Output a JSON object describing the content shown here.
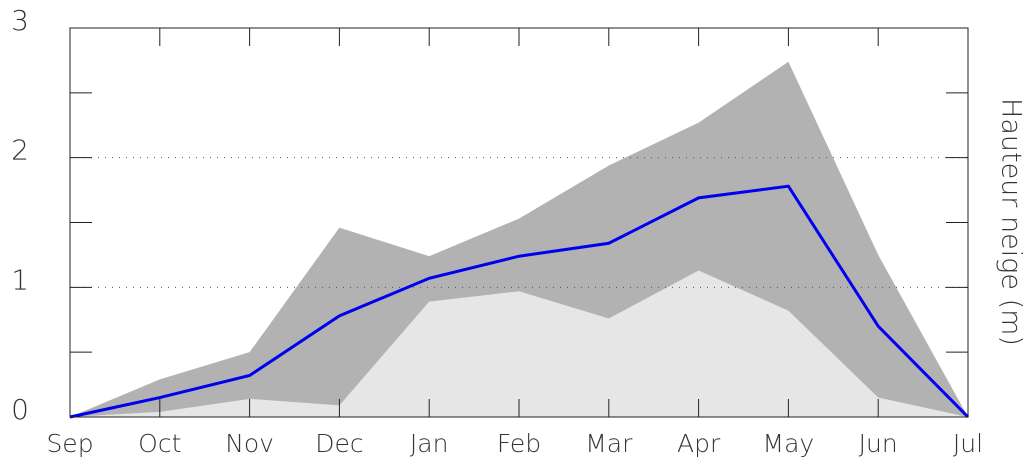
{
  "chart_data": {
    "type": "band-line",
    "y_label": "Hauteur neige (m)",
    "categories": [
      "Sep",
      "Oct",
      "Nov",
      "Dec",
      "Jan",
      "Feb",
      "Mar",
      "Apr",
      "May",
      "Jun",
      "Jul"
    ],
    "series": [
      {
        "color": "#b2b2b2",
        "values": [
          0,
          0.29,
          0.5,
          1.46,
          1.24,
          1.53,
          1.94,
          2.27,
          2.74,
          1.25,
          0
        ]
      },
      {
        "color": "#e6e6e6",
        "values": [
          0,
          0.04,
          0.14,
          0.09,
          0.89,
          0.97,
          0.76,
          1.13,
          0.82,
          0.15,
          0
        ]
      },
      {
        "color": "#0000ee",
        "values": [
          0,
          0.15,
          0.32,
          0.78,
          1.07,
          1.24,
          1.34,
          1.69,
          1.78,
          0.7,
          0
        ]
      }
    ],
    "ylim": [
      0,
      3
    ],
    "yticks": [
      0,
      1,
      2,
      3
    ],
    "yminor_ticks": [
      0.5,
      1.5,
      2.5
    ],
    "grid": true
  }
}
